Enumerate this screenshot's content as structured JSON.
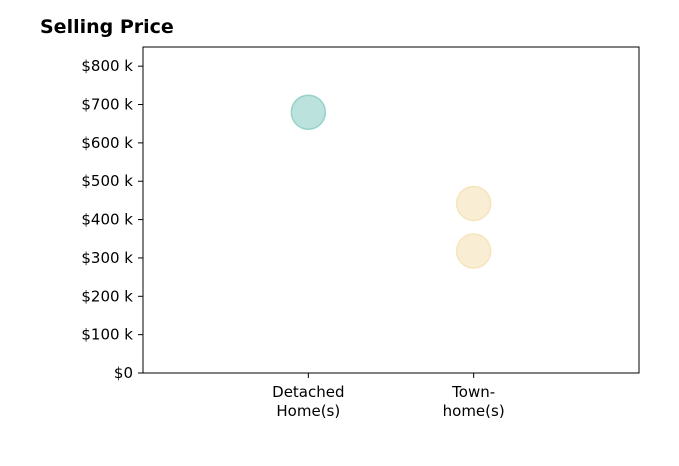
{
  "chart_data": {
    "type": "scatter",
    "title": "Selling Price",
    "xlabel": "",
    "ylabel": "",
    "categories": [
      [
        "Detached",
        "Home(s)"
      ],
      [
        "Town-",
        "home(s)"
      ]
    ],
    "yticks": [
      0,
      100,
      200,
      300,
      400,
      500,
      600,
      700,
      800
    ],
    "ytick_labels": [
      "$0",
      "$100 k",
      "$200 k",
      "$300 k",
      "$400 k",
      "$500 k",
      "$600 k",
      "$700 k",
      "$800 k"
    ],
    "ylim": [
      0,
      850
    ],
    "xlim": [
      -1,
      2
    ],
    "y_units": "thousands of dollars",
    "grid": false,
    "series": [
      {
        "category": "Detached Home(s)",
        "color": "#8fcfc7",
        "points": [
          {
            "x": 0,
            "y": 680
          }
        ]
      },
      {
        "category": "Town-home(s)",
        "color": "#f5e2b8",
        "points": [
          {
            "x": 1,
            "y": 442
          },
          {
            "x": 1,
            "y": 318
          }
        ]
      }
    ]
  }
}
